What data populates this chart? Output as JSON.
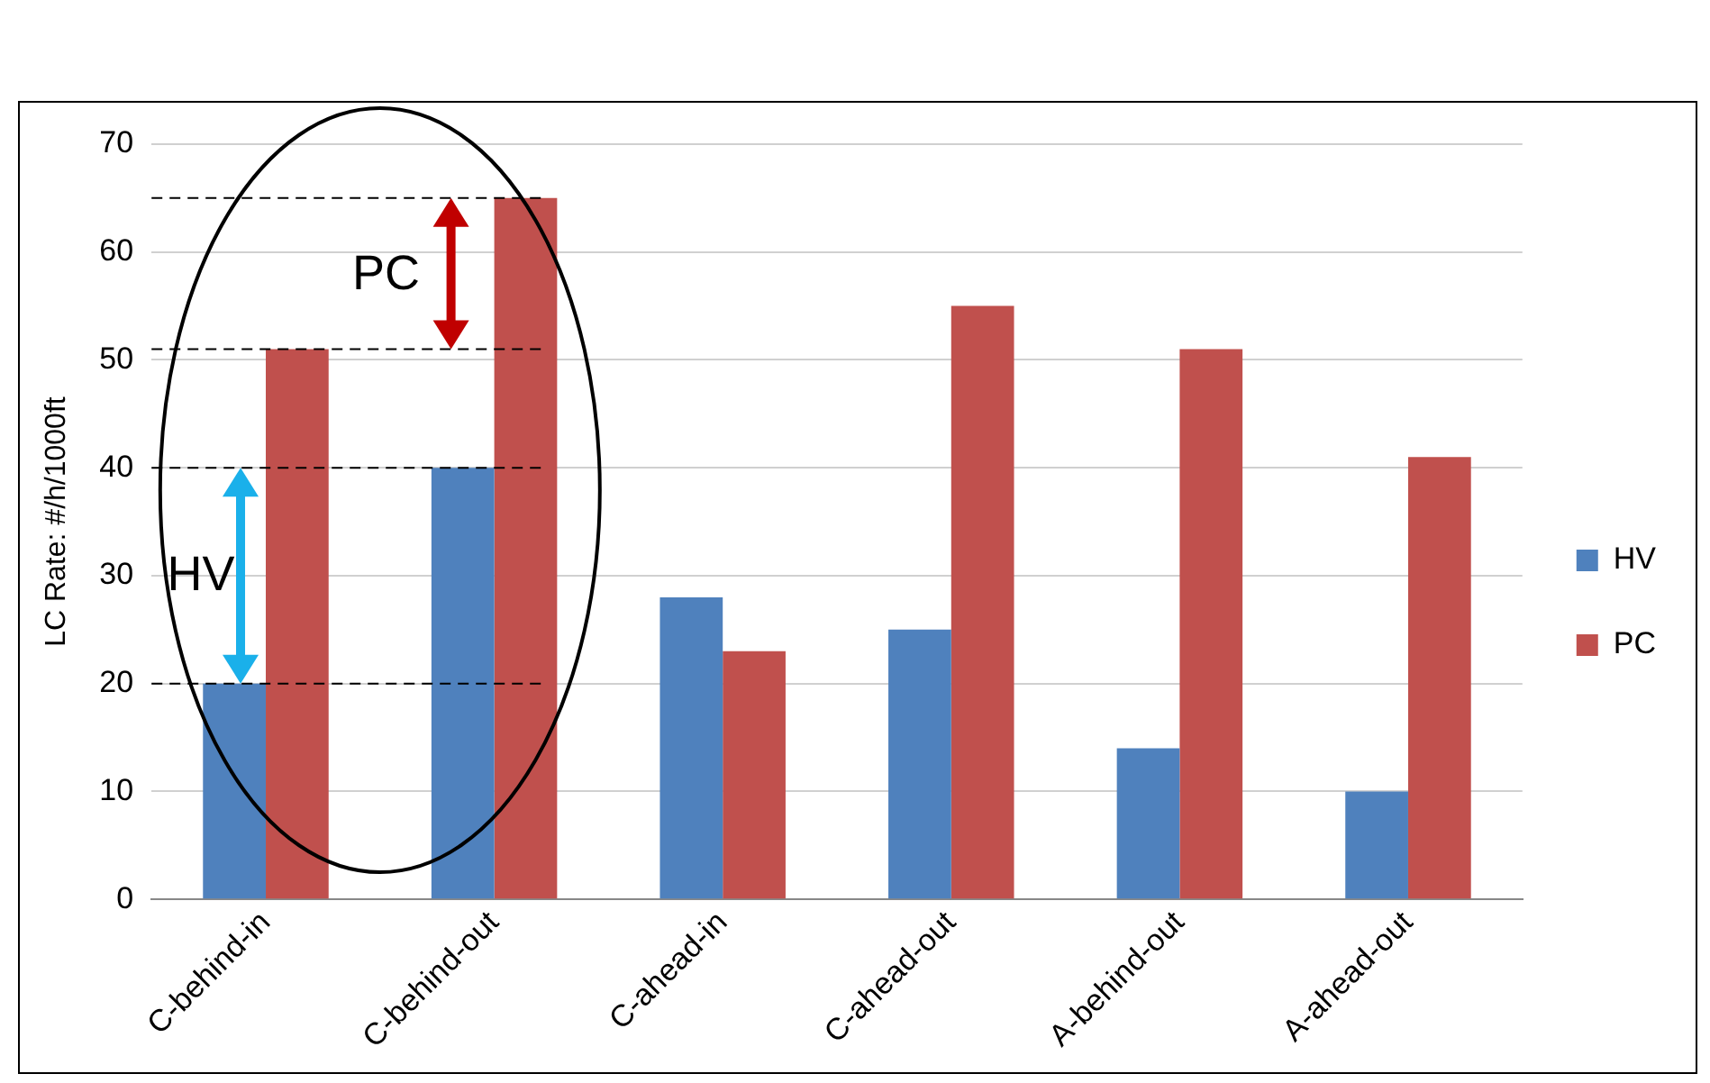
{
  "chart_data": {
    "type": "bar",
    "ylabel": "LC Rate: #/h/1000ft",
    "categories": [
      "C-behind-in",
      "C-behind-out",
      "C-ahead-in",
      "C-ahead-out",
      "A-behind-out",
      "A-ahead-out"
    ],
    "series": [
      {
        "name": "HV",
        "color": "#4f81bd",
        "values": [
          20,
          40,
          28,
          25,
          14,
          10
        ]
      },
      {
        "name": "PC",
        "color": "#c0504d",
        "values": [
          51,
          65,
          23,
          55,
          51,
          41
        ]
      }
    ],
    "ylim": [
      0,
      70
    ],
    "yticks": [
      0,
      10,
      20,
      30,
      40,
      50,
      60,
      70
    ],
    "grid": "y",
    "legend": "right",
    "ref_lines": [
      {
        "axis": "y",
        "value": 20,
        "line_style": "dashed",
        "color": "#000000"
      },
      {
        "axis": "y",
        "value": 40,
        "line_style": "dashed",
        "color": "#000000"
      },
      {
        "axis": "y",
        "value": 51,
        "line_style": "dashed",
        "color": "#000000"
      },
      {
        "axis": "y",
        "value": 65,
        "line_style": "dashed",
        "color": "#000000"
      }
    ],
    "annotations": [
      {
        "text": "HV",
        "x": "C-behind-in",
        "y": 30
      },
      {
        "text": "PC",
        "x": "C-behind-out",
        "y": 58
      }
    ]
  }
}
